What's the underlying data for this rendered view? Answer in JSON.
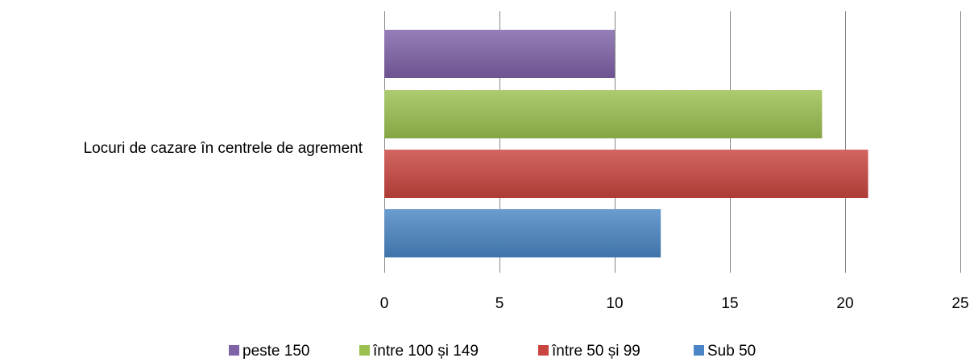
{
  "chart_data": {
    "type": "bar",
    "orientation": "horizontal",
    "categories": [
      "Locuri de cazare în centrele de agrement"
    ],
    "series": [
      {
        "name": "Sub 50",
        "values": [
          12
        ],
        "color": "#4a86c5"
      },
      {
        "name": "între 50 și 99",
        "values": [
          21
        ],
        "color": "#c9453f"
      },
      {
        "name": "între 100 și 149",
        "values": [
          19
        ],
        "color": "#9bc050"
      },
      {
        "name": "peste 150",
        "values": [
          10
        ],
        "color": "#7f62a8"
      }
    ],
    "title": "",
    "xlabel": "",
    "ylabel": "",
    "xlim": [
      0,
      25
    ],
    "xticks": [
      "0",
      "5",
      "10",
      "15",
      "20",
      "25"
    ],
    "grid": "vertical",
    "legend_position": "bottom",
    "legend_order": [
      "peste 150",
      "între 100 și 149",
      "între 50 și 99",
      "Sub 50"
    ]
  }
}
